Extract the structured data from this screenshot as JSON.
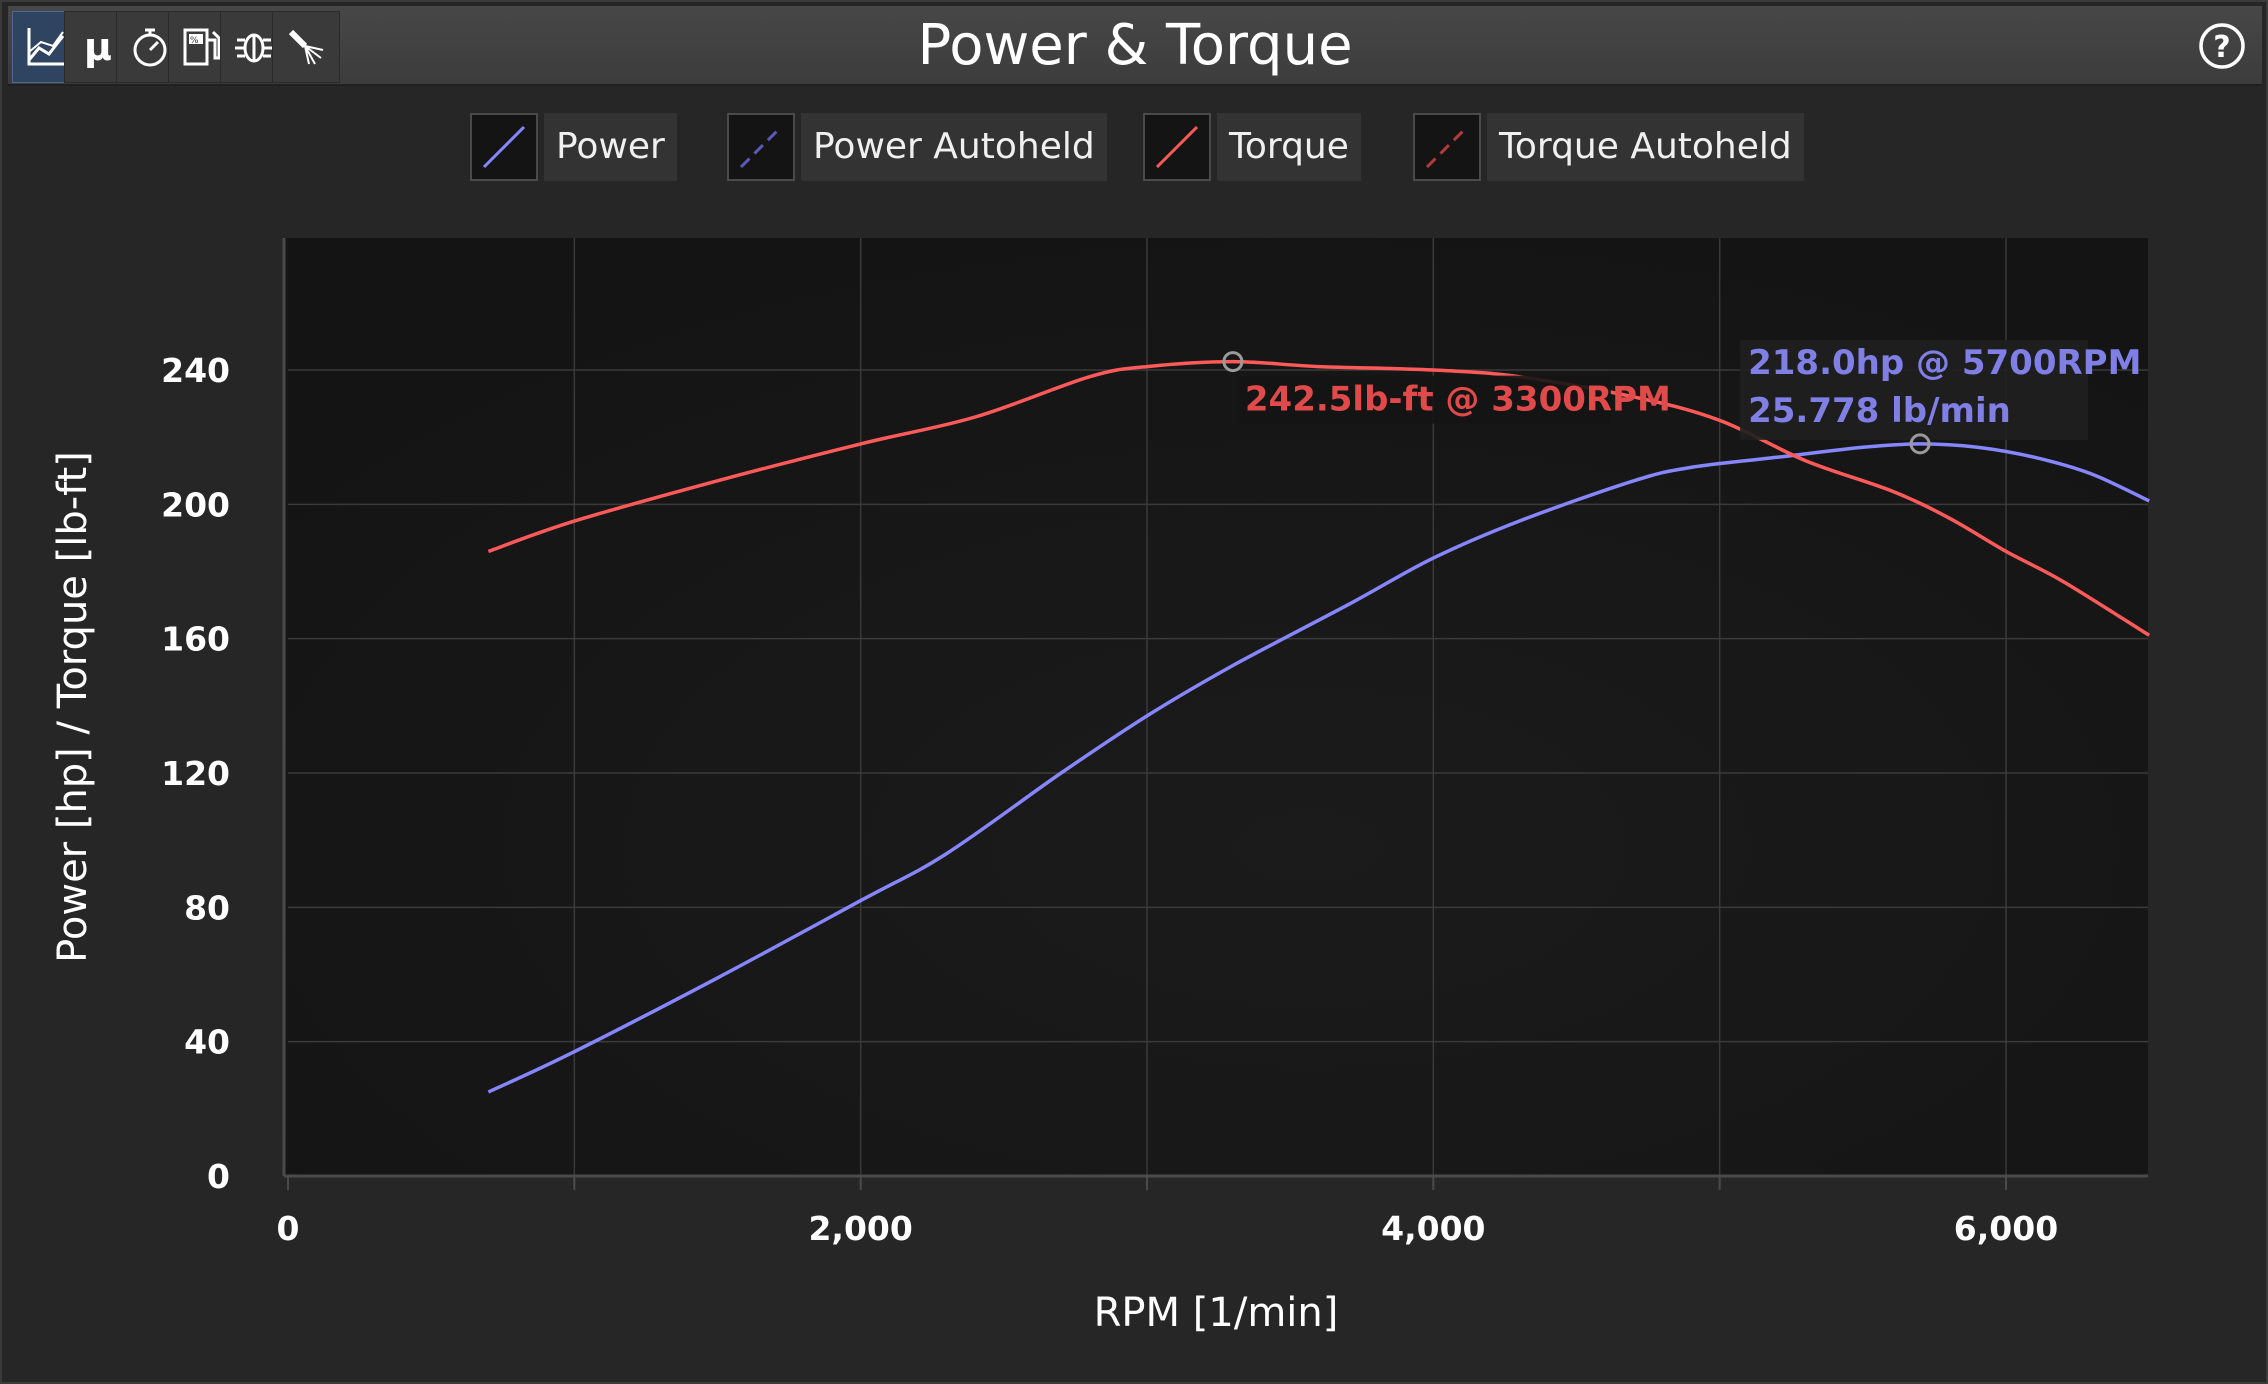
{
  "window": {
    "title": "Power & Torque",
    "toolbar": [
      {
        "name": "power-torque-graph-icon",
        "active": true
      },
      {
        "name": "friction-mu-icon",
        "label": "μ",
        "active": false
      },
      {
        "name": "stopwatch-icon",
        "active": false
      },
      {
        "name": "fuel-percent-icon",
        "active": false
      },
      {
        "name": "engine-bug-icon",
        "active": false
      },
      {
        "name": "spray-nozzle-icon",
        "active": false
      }
    ],
    "help_icon": "help-question-icon"
  },
  "legend": [
    {
      "label": "Power",
      "color": "#8686ff",
      "dashed": false
    },
    {
      "label": "Power Autoheld",
      "color": "#5a5ab8",
      "dashed": true
    },
    {
      "label": "Torque",
      "color": "#ff5a5a",
      "dashed": false
    },
    {
      "label": "Torque Autoheld",
      "color": "#b43a3a",
      "dashed": true
    }
  ],
  "chart_data": {
    "type": "line",
    "xlabel": "RPM [1/min]",
    "ylabel": "Power [hp] / Torque [lb-ft]",
    "xlim": [
      0,
      6500
    ],
    "ylim": [
      0,
      275
    ],
    "x_ticks": [
      0,
      2000,
      4000,
      6000
    ],
    "x_tick_labels": [
      "0",
      "2,000",
      "4,000",
      "6,000"
    ],
    "y_ticks": [
      0,
      40,
      80,
      120,
      160,
      200,
      240
    ],
    "y_tick_labels": [
      "0",
      "40",
      "80",
      "120",
      "160",
      "200",
      "240"
    ],
    "grid": true,
    "series": [
      {
        "name": "Power",
        "color": "#8686ff",
        "x": [
          700,
          1000,
          1500,
          2000,
          2300,
          2700,
          3000,
          3300,
          3700,
          4000,
          4300,
          4700,
          4900,
          5200,
          5500,
          5700,
          5900,
          6100,
          6300,
          6500
        ],
        "y": [
          25,
          37,
          59,
          82,
          96,
          120,
          137,
          152,
          170,
          184,
          195,
          207,
          211,
          214,
          217,
          218,
          217,
          214,
          209,
          201
        ]
      },
      {
        "name": "Torque",
        "color": "#ff5a5a",
        "x": [
          700,
          1000,
          1500,
          2000,
          2400,
          2800,
          3000,
          3300,
          3600,
          4000,
          4300,
          4700,
          5000,
          5300,
          5600,
          5800,
          6000,
          6200,
          6500
        ],
        "y": [
          186,
          195,
          207,
          218,
          226,
          238,
          241,
          242.5,
          241,
          240,
          238,
          232,
          225,
          213,
          204,
          196,
          186,
          177,
          161
        ]
      }
    ],
    "annotations": [
      {
        "series": "Torque",
        "x": 3300,
        "y": 242.5,
        "text": "242.5lb-ft @ 3300RPM",
        "color": "#e04a4a"
      },
      {
        "series": "Power",
        "x": 5700,
        "y": 218,
        "lines": [
          "218.0hp @ 5700RPM",
          "25.778 lb/min"
        ],
        "color": "#7f7fe6"
      }
    ]
  }
}
